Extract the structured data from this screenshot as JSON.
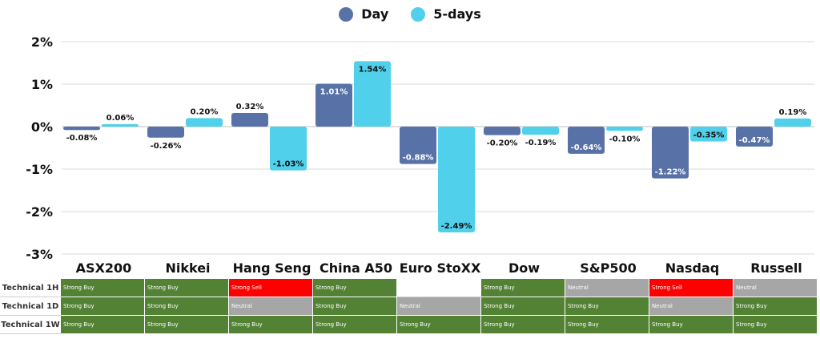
{
  "legend": [
    {
      "label": "Day",
      "color": "#5872a8"
    },
    {
      "label": "5-days",
      "color": "#50d0ea"
    }
  ],
  "chart_data": {
    "type": "bar",
    "categories": [
      "ASX200",
      "Nikkei",
      "Hang Seng",
      "China A50",
      "Euro StoXX",
      "Dow",
      "S&P500",
      "Nasdaq",
      "Russell"
    ],
    "series": [
      {
        "name": "Day",
        "color": "#5872a8",
        "values": [
          -0.08,
          -0.26,
          0.32,
          1.01,
          -0.88,
          -0.2,
          -0.64,
          -1.22,
          -0.47
        ],
        "labels": [
          "-0.08%",
          "-0.26%",
          "0.32%",
          "1.01%",
          "-0.88%",
          "-0.20%",
          "-0.64%",
          "-1.22%",
          "-0.47%"
        ]
      },
      {
        "name": "5-days",
        "color": "#50d0ea",
        "values": [
          0.06,
          0.2,
          -1.03,
          1.54,
          -2.49,
          -0.19,
          -0.1,
          -0.35,
          0.19
        ],
        "labels": [
          "0.06%",
          "0.20%",
          "-1.03%",
          "1.54%",
          "-2.49%",
          "-0.19%",
          "-0.10%",
          "-0.35%",
          "0.19%"
        ]
      }
    ],
    "yticks": [
      2,
      1,
      0,
      -1,
      -2,
      -3
    ],
    "ytick_labels": [
      "2%",
      "1%",
      "0%",
      "-1%",
      "-2%",
      "-3%"
    ],
    "ylim": [
      -3,
      2
    ],
    "grid": true,
    "legend_position": "top-center"
  },
  "technical": {
    "rows": [
      {
        "label": "Technical 1H",
        "cells": [
          "Strong Buy",
          "Strong Buy",
          "Strong Sell",
          "Strong Buy",
          "",
          "Strong Buy",
          "Neutral",
          "Strong Sell",
          "Neutral"
        ]
      },
      {
        "label": "Technical 1D",
        "cells": [
          "Strong Buy",
          "Strong Buy",
          "Neutral",
          "Strong Buy",
          "Neutral",
          "Strong Buy",
          "Strong Buy",
          "Neutral",
          "Strong Buy"
        ]
      },
      {
        "label": "Technical 1W",
        "cells": [
          "Strong Buy",
          "Strong Buy",
          "Strong Buy",
          "Strong Buy",
          "Strong Buy",
          "Strong Buy",
          "Strong Buy",
          "Strong Buy",
          "Strong Buy"
        ]
      }
    ],
    "colors": {
      "Strong Buy": "#548235",
      "Strong Sell": "#ff0000",
      "Neutral": "#a6a6a6",
      "": "#ffffff"
    }
  }
}
